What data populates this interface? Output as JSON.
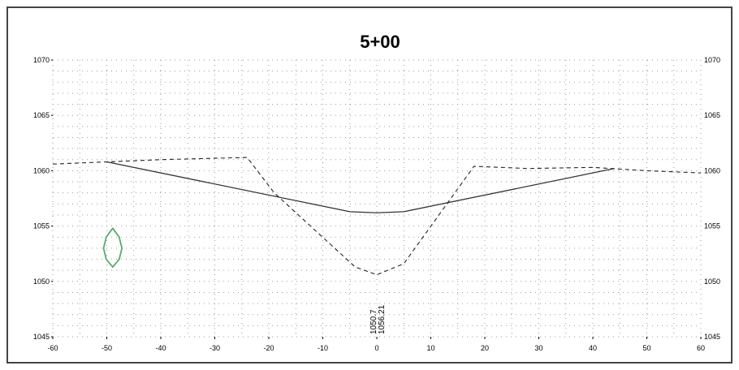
{
  "chart_data": {
    "type": "line",
    "title": "5+00",
    "xlim": [
      -60,
      60
    ],
    "ylim": [
      1045,
      1070
    ],
    "x_ticks": [
      -60,
      -50,
      -40,
      -30,
      -20,
      -10,
      0,
      10,
      20,
      30,
      40,
      50,
      60
    ],
    "y_ticks": [
      1045,
      1050,
      1055,
      1060,
      1065,
      1070
    ],
    "y_tick_labels_right": true,
    "grid": "dotted",
    "series": [
      {
        "style": "solid",
        "color": "#333333",
        "x": [
          -50,
          -5,
          0,
          5,
          44
        ],
        "y": [
          1060.8,
          1056.3,
          1056.2,
          1056.3,
          1060.2
        ]
      },
      {
        "style": "dashed",
        "color": "#222222",
        "x": [
          -60,
          -50,
          -40,
          -24,
          -19,
          -4,
          0,
          5,
          18,
          28,
          40,
          50,
          60
        ],
        "y": [
          1060.6,
          1060.8,
          1061.0,
          1061.2,
          1058.0,
          1051.3,
          1050.6,
          1051.6,
          1060.4,
          1060.2,
          1060.3,
          1060.0,
          1059.8
        ]
      },
      {
        "style": "solid",
        "color": "#5aaa6e",
        "closed": true,
        "x": [
          -48.9,
          -47.7,
          -47.2,
          -47.7,
          -48.9,
          -50.1,
          -50.6,
          -50.1
        ],
        "y": [
          1054.8,
          1054.0,
          1053.0,
          1052.0,
          1051.3,
          1052.0,
          1053.0,
          1054.0
        ]
      }
    ],
    "annotations": [
      {
        "text": "1050.7",
        "x": 0,
        "rotated": true
      },
      {
        "text": "1056.21",
        "x": 0,
        "rotated": true
      }
    ]
  }
}
